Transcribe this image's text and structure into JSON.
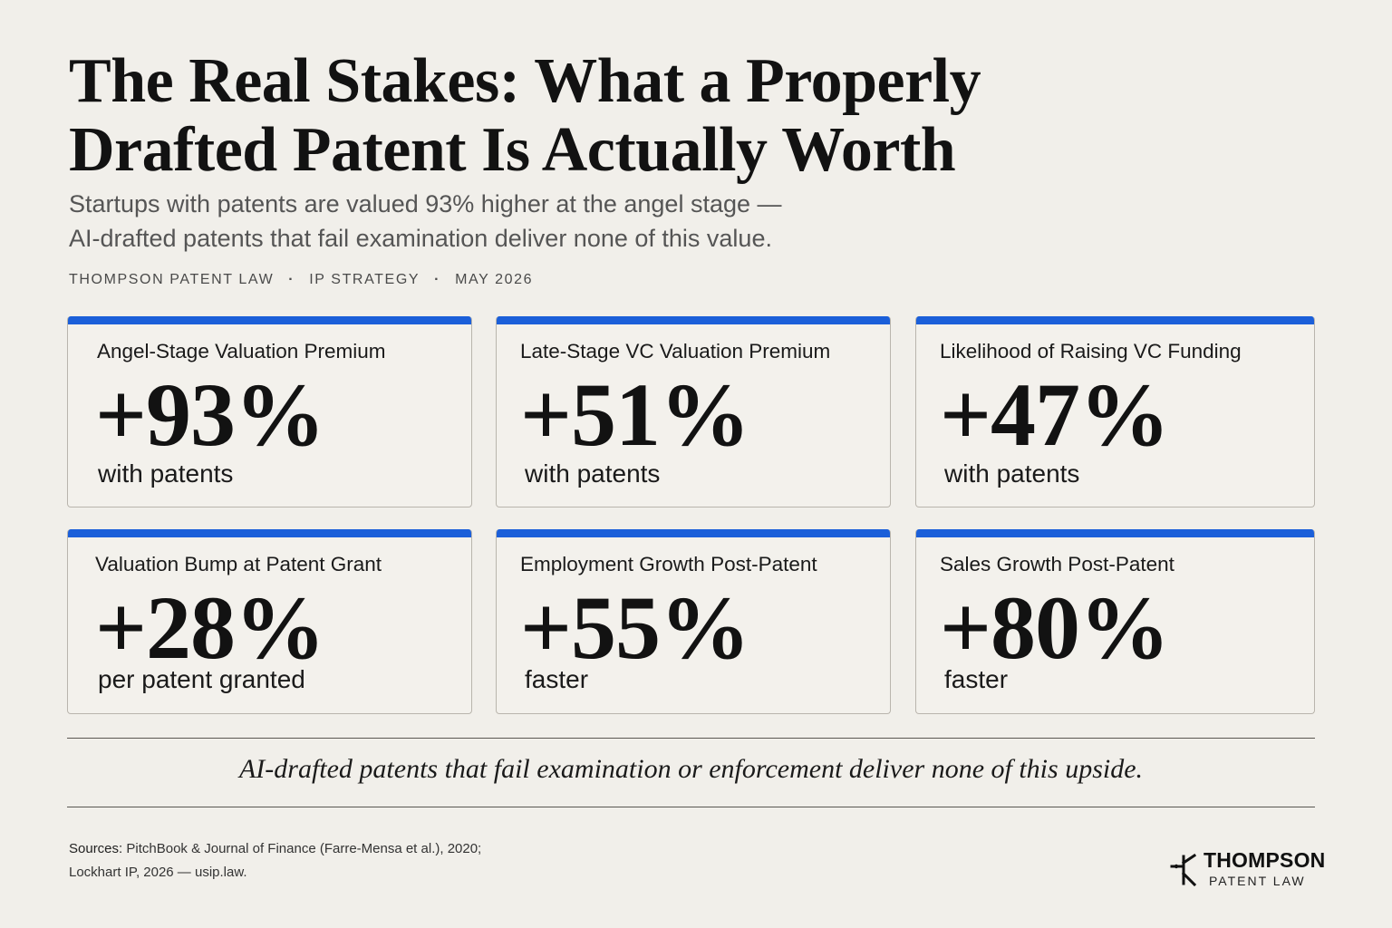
{
  "header": {
    "title_line1": "The Real Stakes: What a Properly",
    "title_line2": "Drafted Patent Is Actually Worth",
    "subtitle_line1": "Startups with patents are valued 93% higher at the angel stage —",
    "subtitle_line2": "AI-drafted patents that fail examination deliver none of this value.",
    "meta": [
      "THOMPSON PATENT LAW",
      "IP STRATEGY",
      "MAY 2026"
    ],
    "meta_separator": "·"
  },
  "cards": [
    {
      "label": "Angel-Stage Valuation Premium",
      "value": "+93%",
      "note": "with patents"
    },
    {
      "label": "Late-Stage VC Valuation Premium",
      "value": "+51%",
      "note": "with patents"
    },
    {
      "label": "Likelihood of Raising VC Funding",
      "value": "+47%",
      "note": "with patents"
    },
    {
      "label": "Valuation Bump at Patent Grant",
      "value": "+28%",
      "note": "per patent granted"
    },
    {
      "label": "Employment Growth Post-Patent",
      "value": "+55%",
      "note": "faster"
    },
    {
      "label": "Sales Growth Post-Patent",
      "value": "+80%",
      "note": "faster"
    }
  ],
  "callout": "AI-drafted patents that fail examination or enforcement deliver none of this upside.",
  "sources": {
    "lead": "Sources:",
    "line1": "PitchBook & Journal of Finance (Farre-Mensa et al.), 2020;",
    "line2": "Lockhart IP, 2026 — usip.law."
  },
  "logo": {
    "name": "THOMPSON",
    "sub": "PATENT LAW",
    "icon": "circuit-node-icon"
  },
  "colors": {
    "accent": "#1b5fd9",
    "background": "#f1efea",
    "text": "#151515"
  }
}
